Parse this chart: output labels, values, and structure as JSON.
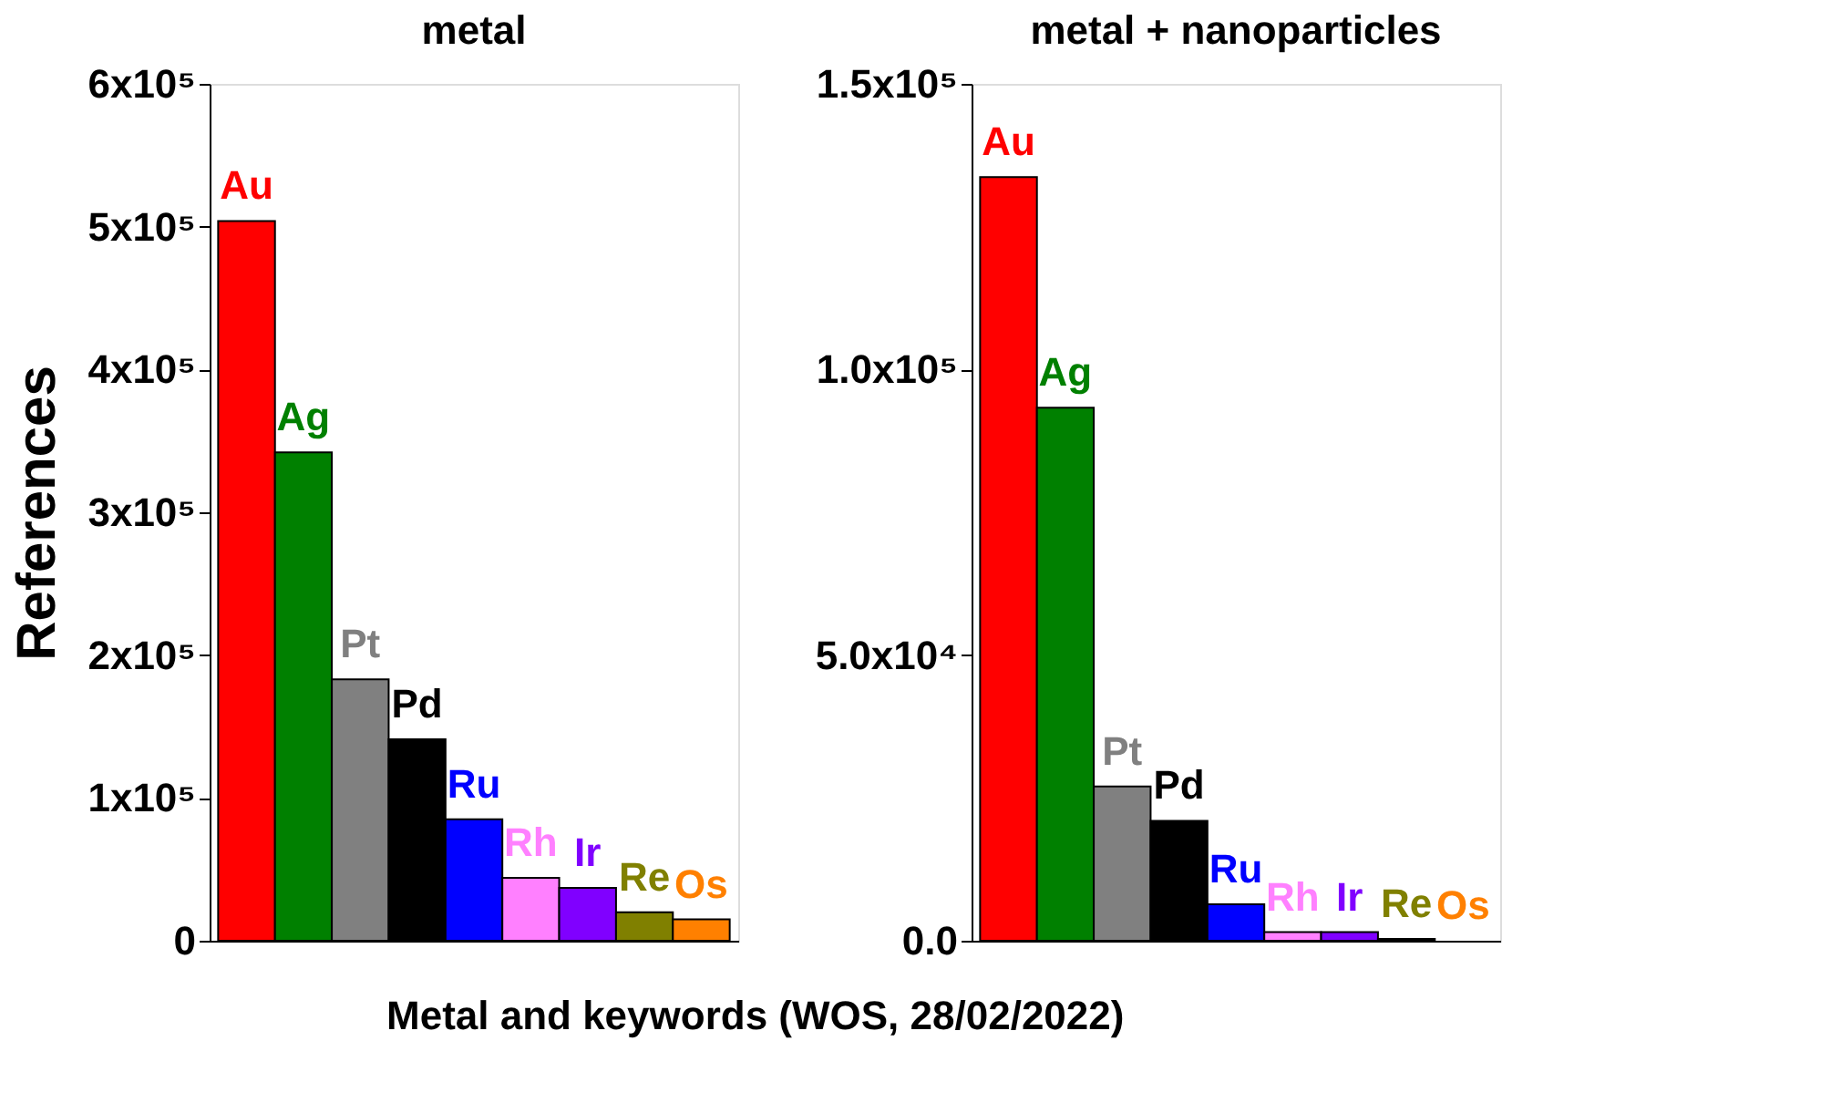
{
  "chart_data": [
    {
      "type": "bar",
      "title": "metal",
      "ylabel": "References",
      "xlabel": "Metal and keywords (WOS, 28/02/2022)",
      "categories": [
        "Au",
        "Ag",
        "Pt",
        "Pd",
        "Ru",
        "Rh",
        "Ir",
        "Re",
        "Os"
      ],
      "values": [
        504000,
        342000,
        183000,
        141000,
        85000,
        44000,
        37000,
        20000,
        15000
      ],
      "colors": [
        "#ff0000",
        "#008000",
        "#808080",
        "#000000",
        "#0000ff",
        "#ff80ff",
        "#8000ff",
        "#808000",
        "#ff8000"
      ],
      "ylim": [
        0,
        600000
      ],
      "yticks": [
        0,
        {
          "value": 100000,
          "label": "1x10⁵"
        },
        {
          "value": 200000,
          "label": "2x10⁵"
        },
        {
          "value": 300000,
          "label": "3x10⁵"
        },
        {
          "value": 400000,
          "label": "4x10⁵"
        },
        {
          "value": 500000,
          "label": "5x10⁵"
        },
        {
          "value": 600000,
          "label": "6x10⁵"
        }
      ],
      "tick_labels": "y",
      "grid": false
    },
    {
      "type": "bar",
      "title": "metal + nanoparticles",
      "categories": [
        "Au",
        "Ag",
        "Pt",
        "Pd",
        "Ru",
        "Rh",
        "Ir",
        "Re",
        "Os"
      ],
      "values": [
        133700,
        93300,
        27000,
        21000,
        6400,
        1500,
        1500,
        300,
        null
      ],
      "colors": [
        "#ff0000",
        "#008000",
        "#808080",
        "#000000",
        "#0000ff",
        "#ff80ff",
        "#8000ff",
        "#808000",
        "#ff8000"
      ],
      "ylim": [
        0,
        150000
      ],
      "yticks": [
        {
          "value": 0,
          "label": "0.0"
        },
        {
          "value": 50000,
          "label": "5.0x10⁴"
        },
        {
          "value": 100000,
          "label": "1.0x10⁵"
        },
        {
          "value": 150000,
          "label": "1.5x10⁵"
        }
      ],
      "tick_labels": "y",
      "grid": false
    }
  ]
}
